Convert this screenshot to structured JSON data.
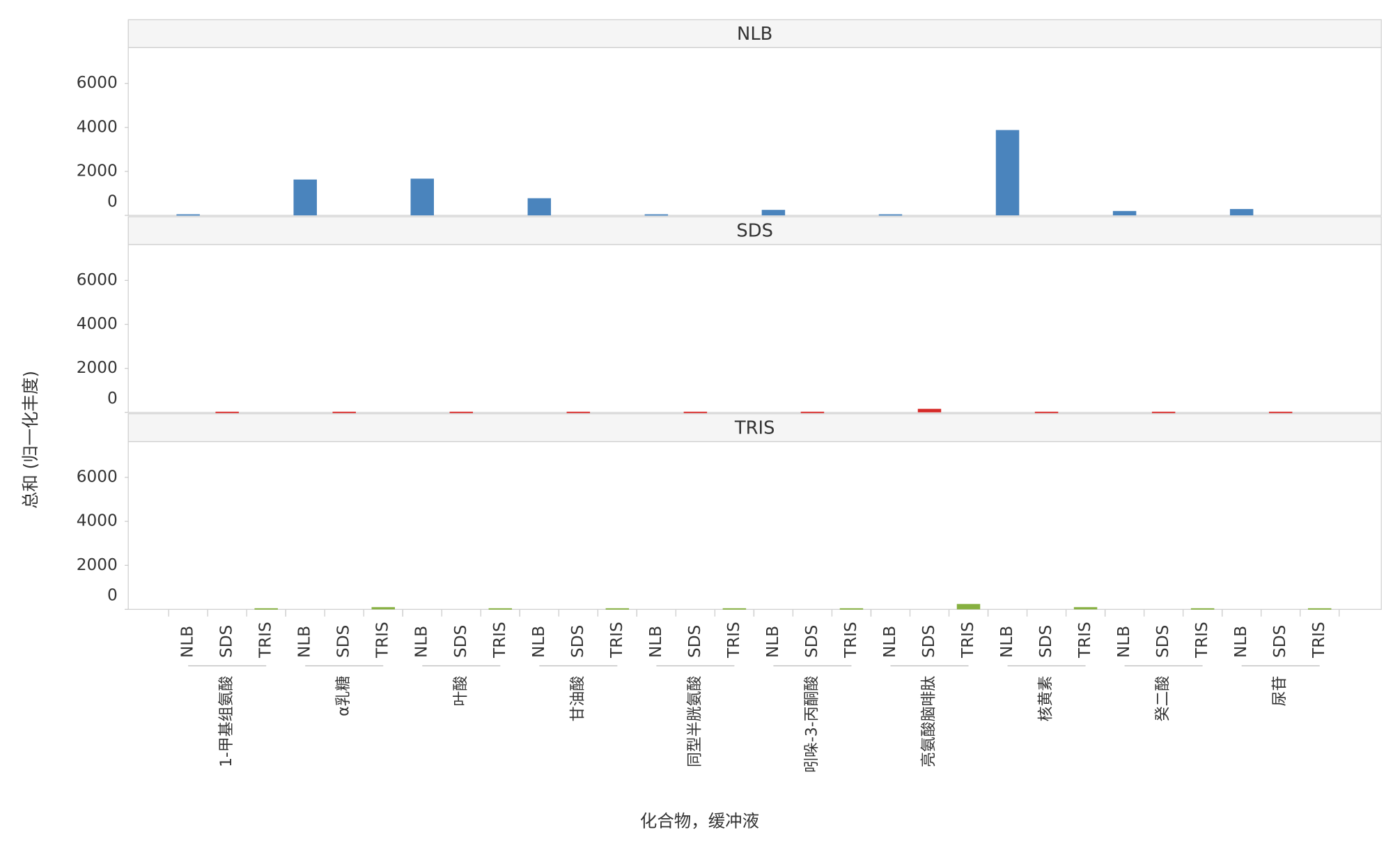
{
  "chart_data": {
    "type": "bar",
    "ylabel": "总和 (归一化丰度)",
    "xlabel": "化合物，缓冲液",
    "compounds": [
      "1-甲基组氨酸",
      "α乳糖",
      "叶酸",
      "甘油酸",
      "同型半胱氨酸",
      "吲哚-3-丙酮酸",
      "亮氨酸脑啡肽",
      "核黄素",
      "癸二酸",
      "尿苷"
    ],
    "buffers": [
      "NLB",
      "SDS",
      "TRIS"
    ],
    "series": [
      {
        "name": "NLB",
        "color": "#4a84bd",
        "values": [
          50,
          1630,
          1670,
          780,
          50,
          250,
          50,
          3880,
          200,
          290
        ]
      },
      {
        "name": "SDS",
        "color": "#d62a28",
        "values": [
          30,
          30,
          30,
          30,
          30,
          30,
          160,
          30,
          30,
          30
        ]
      },
      {
        "name": "TRIS",
        "color": "#86b040",
        "values": [
          50,
          100,
          50,
          50,
          50,
          50,
          245,
          100,
          50,
          50
        ]
      }
    ],
    "ylim": [
      0,
      7630
    ],
    "yticks": [
      0,
      2000,
      4000,
      6000
    ]
  }
}
